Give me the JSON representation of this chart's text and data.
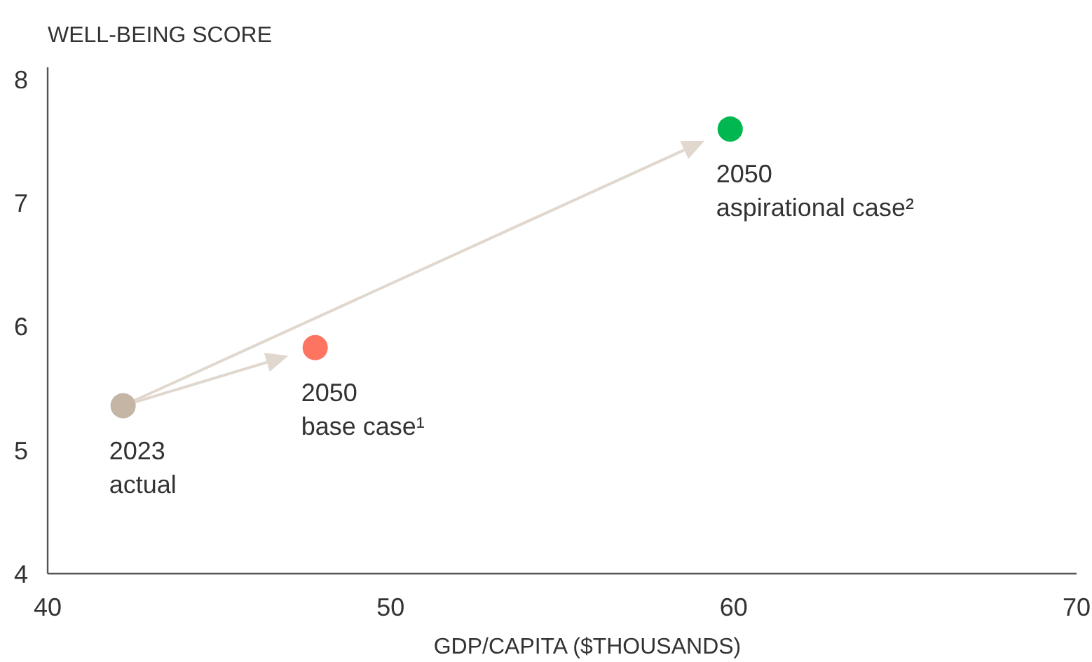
{
  "chart_data": {
    "type": "scatter",
    "ylabel": "WELL-BEING SCORE",
    "xlabel": "GDP/CAPITA ($THOUSANDS)",
    "x": [
      42.2,
      47.8,
      59.9
    ],
    "values": [
      5.36,
      5.83,
      7.6
    ],
    "colors": [
      "#c4b5a5",
      "#fd7560",
      "#00b84f"
    ],
    "xlim": [
      40,
      70
    ],
    "xticks": [
      40,
      50,
      60,
      70
    ],
    "ylim": [
      4,
      8.1
    ],
    "yticks": [
      4,
      5,
      6,
      7,
      8
    ],
    "grid": false,
    "marker": "circle",
    "annotations": [
      {
        "text": "2023\nactual",
        "x": 42.2,
        "y": 5.36
      },
      {
        "text": "2050\nbase case¹",
        "x": 47.8,
        "y": 5.83
      },
      {
        "text": "2050\naspirational case²",
        "x": 59.9,
        "y": 7.6
      }
    ]
  }
}
